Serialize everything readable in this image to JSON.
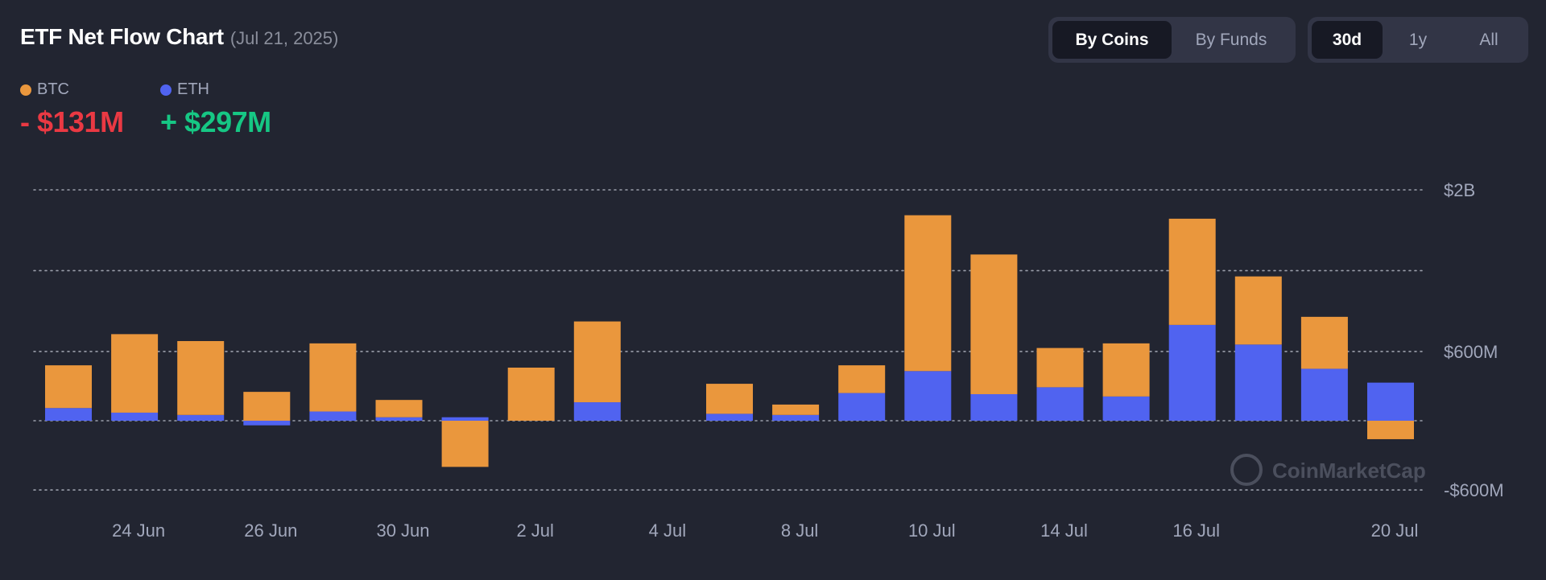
{
  "header": {
    "title": "ETF Net Flow Chart",
    "date": "(Jul 21, 2025)"
  },
  "toggles": {
    "view": [
      {
        "label": "By Coins",
        "active": true
      },
      {
        "label": "By Funds",
        "active": false
      }
    ],
    "range": [
      {
        "label": "30d",
        "active": true
      },
      {
        "label": "1y",
        "active": false
      },
      {
        "label": "All",
        "active": false
      }
    ]
  },
  "summary": {
    "btc": {
      "label": "BTC",
      "value": "- $131M",
      "dot_color": "#ea973d",
      "value_color": "#ea3943"
    },
    "eth": {
      "label": "ETH",
      "value": "+ $297M",
      "dot_color": "#5063f0",
      "value_color": "#16c784"
    }
  },
  "watermark": "CoinMarketCap",
  "chart_data": {
    "type": "bar",
    "stacked": true,
    "unit": "USD millions",
    "ylim": [
      -600,
      2000
    ],
    "y_ticks": [
      {
        "value": 2000,
        "label": "$2B"
      },
      {
        "value": 1300,
        "label": ""
      },
      {
        "value": 600,
        "label": "$600M"
      },
      {
        "value": 0,
        "label": ""
      },
      {
        "value": -600,
        "label": "-$600M"
      }
    ],
    "x_tick_labels": [
      {
        "index": 1,
        "label": "24 Jun"
      },
      {
        "index": 3,
        "label": "26 Jun"
      },
      {
        "index": 5,
        "label": "30 Jun"
      },
      {
        "index": 7,
        "label": "2 Jul"
      },
      {
        "index": 9,
        "label": "4 Jul"
      },
      {
        "index": 11,
        "label": "8 Jul"
      },
      {
        "index": 13,
        "label": "10 Jul"
      },
      {
        "index": 15,
        "label": "14 Jul"
      },
      {
        "index": 17,
        "label": "16 Jul"
      },
      {
        "index": 20,
        "label": "20 Jul"
      }
    ],
    "bar_count": 21,
    "series": [
      {
        "name": "BTC",
        "color": "#ea973d",
        "values": [
          370,
          680,
          640,
          250,
          590,
          150,
          -400,
          460,
          700,
          null,
          260,
          90,
          240,
          1350,
          1210,
          340,
          460,
          920,
          590,
          450,
          -160
        ]
      },
      {
        "name": "ETH",
        "color": "#5063f0",
        "values": [
          110,
          70,
          50,
          -40,
          80,
          30,
          30,
          0,
          160,
          null,
          60,
          50,
          240,
          430,
          230,
          290,
          210,
          830,
          660,
          450,
          330
        ]
      }
    ],
    "grid": true,
    "legend_position": "top-left"
  }
}
